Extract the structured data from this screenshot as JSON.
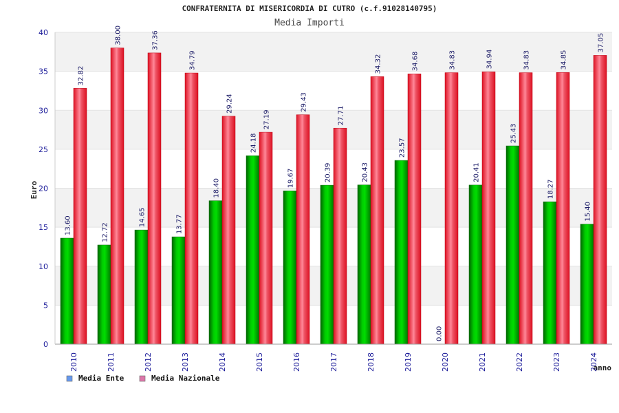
{
  "chart_data": {
    "type": "bar",
    "title": "CONFRATERNITA DI MISERICORDIA DI CUTRO (c.f.91028140795)",
    "subtitle": "Media Importi",
    "ylabel": "Euro",
    "xlabel": "anno",
    "ylim": [
      0,
      40
    ],
    "yticks": [
      "0",
      "5",
      "10",
      "15",
      "20",
      "25",
      "30",
      "35",
      "40"
    ],
    "grid": true,
    "legend_position": "bottom-left",
    "categories": [
      "2010",
      "2011",
      "2012",
      "2013",
      "2014",
      "2015",
      "2016",
      "2017",
      "2018",
      "2019",
      "2020",
      "2021",
      "2022",
      "2023",
      "2024"
    ],
    "series": [
      {
        "name": "Media Ente",
        "color": "#00aa00",
        "legend_color": "#6699ee",
        "values": [
          13.6,
          12.72,
          14.65,
          13.77,
          18.4,
          24.18,
          19.67,
          20.39,
          20.43,
          23.57,
          0.0,
          20.41,
          25.43,
          18.27,
          15.4
        ],
        "labels": [
          "13.60",
          "12.72",
          "14.65",
          "13.77",
          "18.40",
          "24.18",
          "19.67",
          "20.39",
          "20.43",
          "23.57",
          "0.00",
          "20.41",
          "25.43",
          "18.27",
          "15.40"
        ]
      },
      {
        "name": "Media Nazionale",
        "color": "#ee1122",
        "legend_color": "#dd77aa",
        "values": [
          32.82,
          38.0,
          37.36,
          34.79,
          29.24,
          27.19,
          29.43,
          27.71,
          34.32,
          34.68,
          34.83,
          34.94,
          34.83,
          34.85,
          37.05
        ],
        "labels": [
          "32.82",
          "38.00",
          "37.36",
          "34.79",
          "29.24",
          "27.19",
          "29.43",
          "27.71",
          "34.32",
          "34.68",
          "34.83",
          "34.94",
          "34.83",
          "34.85",
          "37.05"
        ]
      }
    ]
  }
}
